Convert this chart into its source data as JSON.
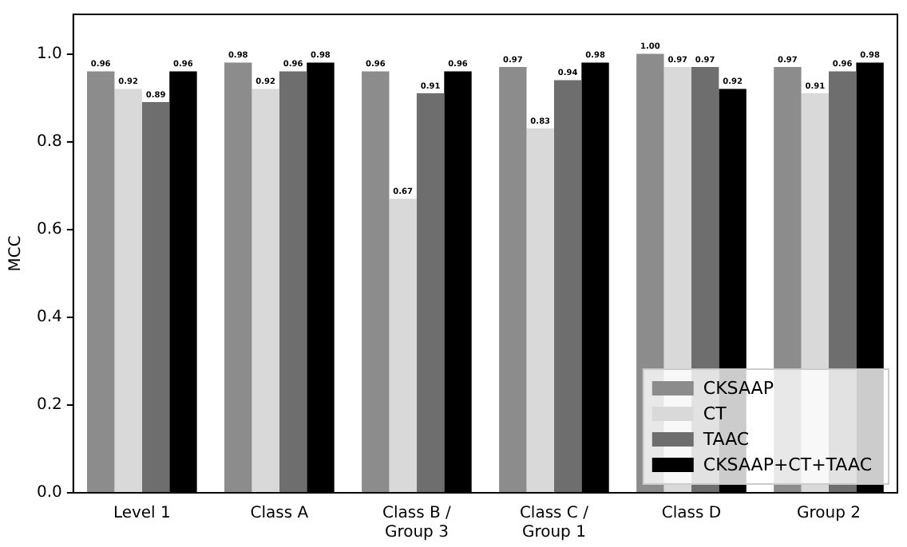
{
  "chart_data": {
    "type": "bar",
    "ylabel": "MCC",
    "categories": [
      "Level 1",
      "Class A",
      "Class B /\nGroup 3",
      "Class C /\nGroup 1",
      "Class D",
      "Group 2"
    ],
    "series": [
      {
        "name": "CKSAAP",
        "color": "#8c8c8c",
        "values": [
          0.96,
          0.98,
          0.96,
          0.97,
          1.0,
          0.97
        ],
        "value_labels": [
          "0.96",
          "0.98",
          "0.96",
          "0.97",
          "1.00",
          "0.97"
        ]
      },
      {
        "name": "CT",
        "color": "#d9d9d9",
        "values": [
          0.92,
          0.92,
          0.67,
          0.83,
          0.97,
          0.91
        ],
        "value_labels": [
          "0.92",
          "0.92",
          "0.67",
          "0.83",
          "0.97",
          "0.91"
        ]
      },
      {
        "name": "TAAC",
        "color": "#6e6e6e",
        "values": [
          0.89,
          0.96,
          0.91,
          0.94,
          0.97,
          0.96
        ],
        "value_labels": [
          "0.89",
          "0.96",
          "0.91",
          "0.94",
          "0.97",
          "0.96"
        ]
      },
      {
        "name": "CKSAAP+CT+TAAC",
        "color": "#000000",
        "values": [
          0.96,
          0.98,
          0.96,
          0.98,
          0.92,
          0.98
        ],
        "value_labels": [
          "0.96",
          "0.98",
          "0.96",
          "0.98",
          "0.92",
          "0.98"
        ]
      }
    ],
    "ylim": [
      0,
      1.09
    ],
    "yticks": [
      {
        "value": 0,
        "label": "0.0"
      },
      {
        "value": 0.2,
        "label": "0.2"
      },
      {
        "value": 0.4,
        "label": "0.4"
      },
      {
        "value": 0.6,
        "label": "0.6"
      },
      {
        "value": 0.8,
        "label": "0.8"
      },
      {
        "value": 1,
        "label": "1.0"
      }
    ],
    "grid": false,
    "legend": "bottom right"
  }
}
